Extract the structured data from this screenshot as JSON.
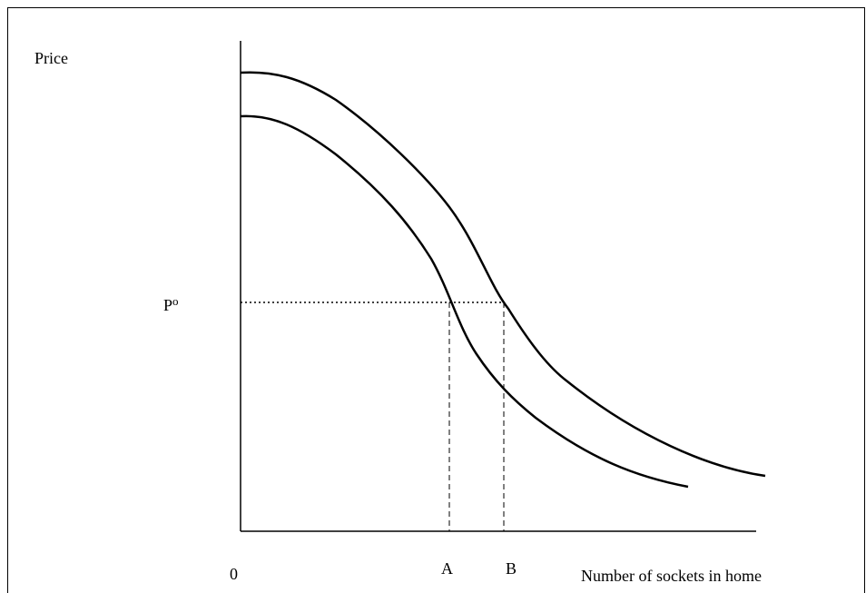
{
  "labels": {
    "y_axis": "Price",
    "price_level": "P",
    "price_level_sup": "o",
    "origin": "0",
    "point_a": "A",
    "point_b": "B",
    "x_axis": "Number of sockets in home"
  }
}
